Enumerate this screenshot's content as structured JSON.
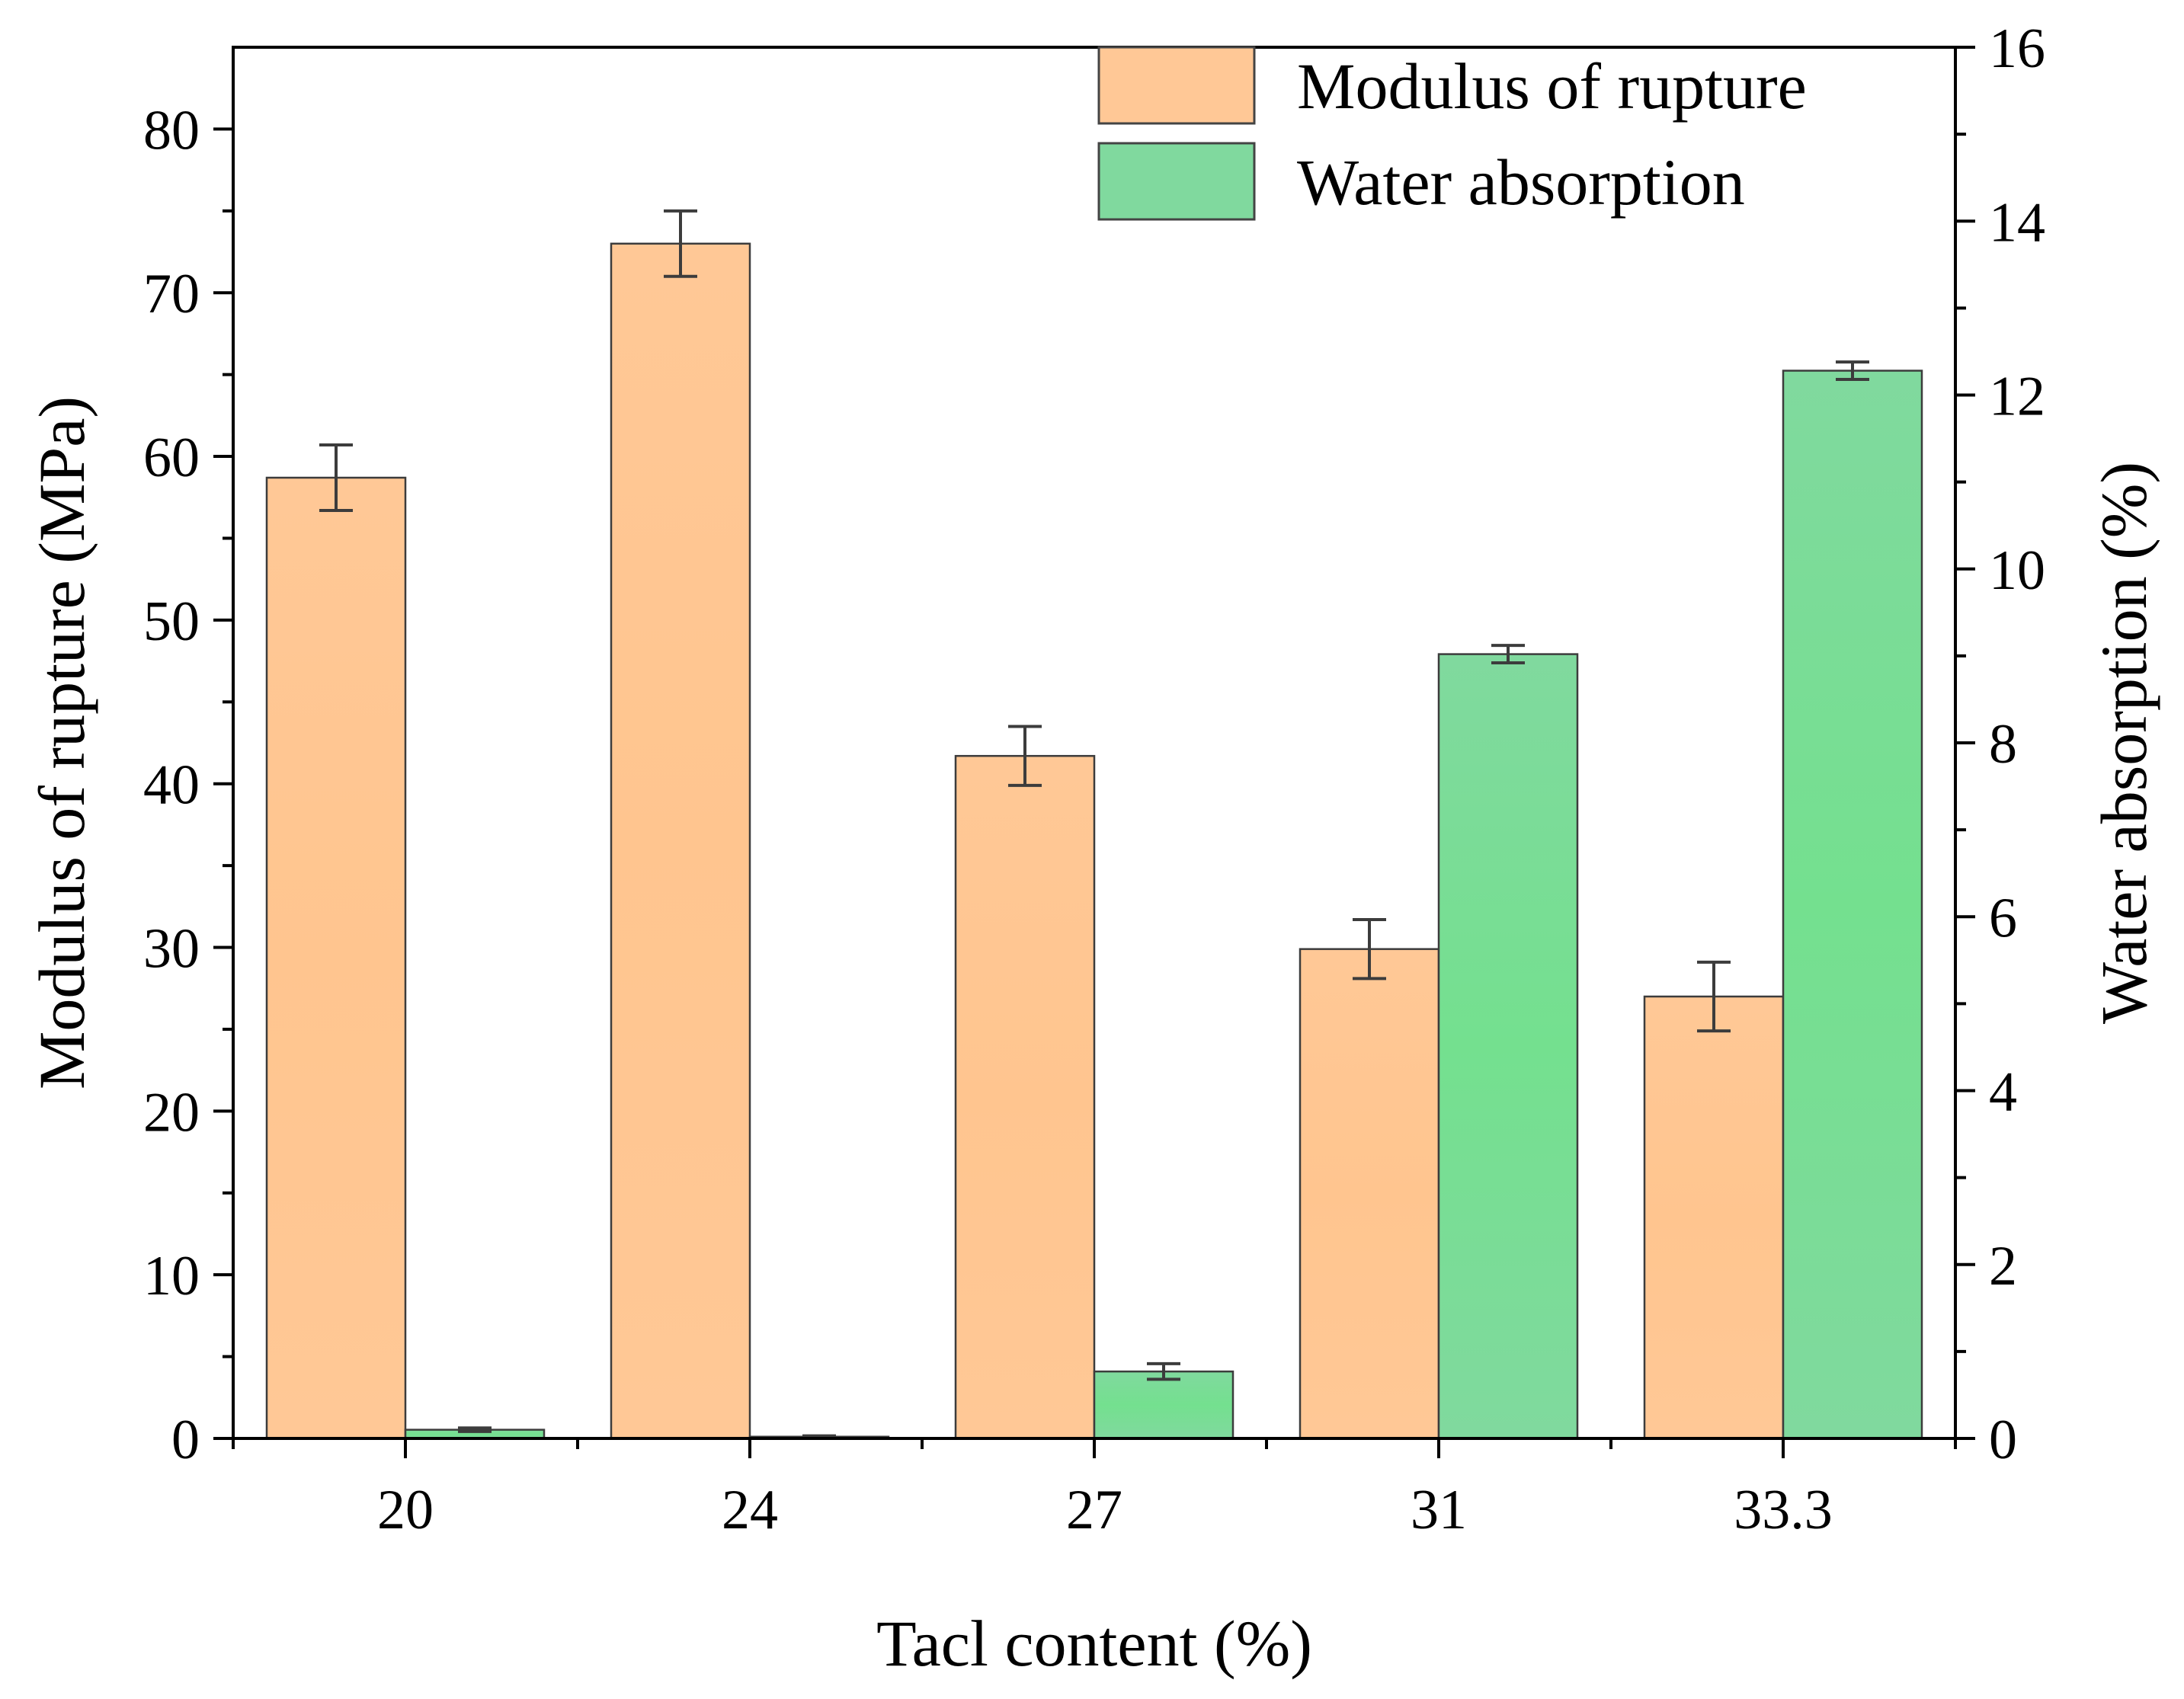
{
  "chart_data": {
    "type": "bar",
    "title": "",
    "xlabel": "Tacl content (%)",
    "ylabel": "Modulus of rupture (MPa)",
    "y2label": "Water absorption (%)",
    "categories": [
      "20",
      "24",
      "27",
      "31",
      "33.3"
    ],
    "ylim": [
      0,
      85
    ],
    "y2lim": [
      0,
      16
    ],
    "yticks": [
      0,
      10,
      20,
      30,
      40,
      50,
      60,
      70,
      80
    ],
    "y2ticks": [
      0,
      2,
      4,
      6,
      8,
      10,
      12,
      14,
      16
    ],
    "grid": false,
    "legend_position": "top-right",
    "series": [
      {
        "name": "Modulus of rupture",
        "axis": "left",
        "color": "#FFC896",
        "values": [
          58.7,
          73.0,
          41.7,
          29.9,
          27.0
        ],
        "errors": [
          2.0,
          2.0,
          1.8,
          1.8,
          2.1
        ]
      },
      {
        "name": "Water absorption",
        "axis": "right",
        "color": "#80D99E",
        "values": [
          0.1,
          0.02,
          0.77,
          9.02,
          12.28
        ],
        "errors": [
          0.02,
          0.01,
          0.09,
          0.1,
          0.1
        ]
      }
    ]
  }
}
